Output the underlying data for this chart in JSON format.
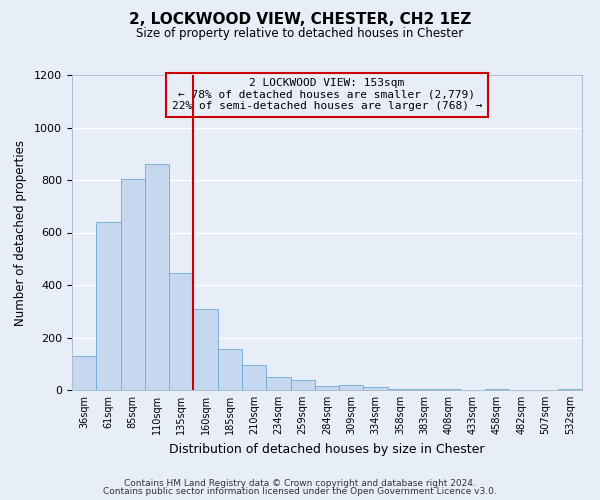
{
  "title": "2, LOCKWOOD VIEW, CHESTER, CH2 1EZ",
  "subtitle": "Size of property relative to detached houses in Chester",
  "xlabel": "Distribution of detached houses by size in Chester",
  "ylabel": "Number of detached properties",
  "bar_labels": [
    "36sqm",
    "61sqm",
    "85sqm",
    "110sqm",
    "135sqm",
    "160sqm",
    "185sqm",
    "210sqm",
    "234sqm",
    "259sqm",
    "284sqm",
    "309sqm",
    "334sqm",
    "358sqm",
    "383sqm",
    "408sqm",
    "433sqm",
    "458sqm",
    "482sqm",
    "507sqm",
    "532sqm"
  ],
  "bar_values": [
    130,
    640,
    805,
    860,
    445,
    310,
    155,
    95,
    50,
    40,
    15,
    20,
    10,
    5,
    2,
    2,
    0,
    2,
    0,
    0,
    2
  ],
  "bar_color": "#c5d8f0",
  "bar_edge_color": "#6aaad4",
  "bg_color": "#e8eef8",
  "grid_color": "#ffffff",
  "vline_color": "#cc0000",
  "vline_x_index": 4.5,
  "box_text_line1": "2 LOCKWOOD VIEW: 153sqm",
  "box_text_line2": "← 78% of detached houses are smaller (2,779)",
  "box_text_line3": "22% of semi-detached houses are larger (768) →",
  "box_edge_color": "#cc0000",
  "ylim": [
    0,
    1200
  ],
  "yticks": [
    0,
    200,
    400,
    600,
    800,
    1000,
    1200
  ],
  "footer1": "Contains HM Land Registry data © Crown copyright and database right 2024.",
  "footer2": "Contains public sector information licensed under the Open Government Licence v3.0."
}
